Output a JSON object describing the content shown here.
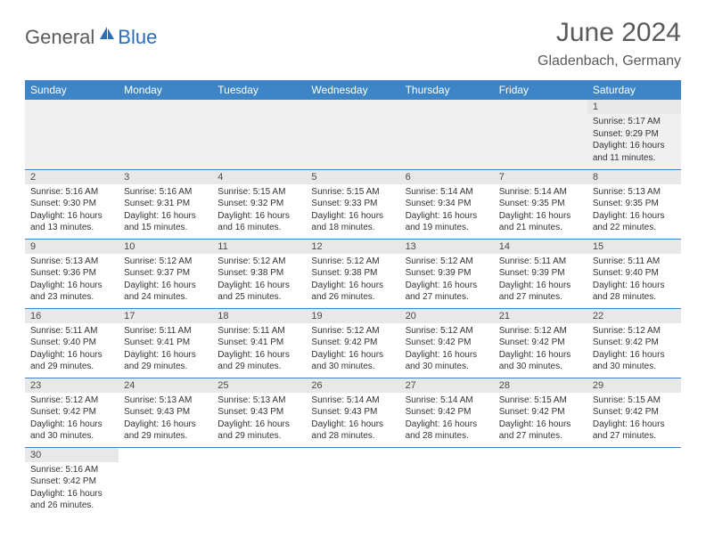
{
  "brand": {
    "part1": "General",
    "part2": "Blue"
  },
  "title": "June 2024",
  "location": "Gladenbach, Germany",
  "colors": {
    "header_bg": "#3d85c6",
    "header_text": "#ffffff",
    "daynum_bg": "#e8e8e8",
    "border": "#3d85c6",
    "brand_gray": "#5a5a5a",
    "brand_blue": "#2a6db8"
  },
  "weekdays": [
    "Sunday",
    "Monday",
    "Tuesday",
    "Wednesday",
    "Thursday",
    "Friday",
    "Saturday"
  ],
  "weeks": [
    [
      null,
      null,
      null,
      null,
      null,
      null,
      {
        "n": "1",
        "sr": "Sunrise: 5:17 AM",
        "ss": "Sunset: 9:29 PM",
        "d1": "Daylight: 16 hours",
        "d2": "and 11 minutes."
      }
    ],
    [
      {
        "n": "2",
        "sr": "Sunrise: 5:16 AM",
        "ss": "Sunset: 9:30 PM",
        "d1": "Daylight: 16 hours",
        "d2": "and 13 minutes."
      },
      {
        "n": "3",
        "sr": "Sunrise: 5:16 AM",
        "ss": "Sunset: 9:31 PM",
        "d1": "Daylight: 16 hours",
        "d2": "and 15 minutes."
      },
      {
        "n": "4",
        "sr": "Sunrise: 5:15 AM",
        "ss": "Sunset: 9:32 PM",
        "d1": "Daylight: 16 hours",
        "d2": "and 16 minutes."
      },
      {
        "n": "5",
        "sr": "Sunrise: 5:15 AM",
        "ss": "Sunset: 9:33 PM",
        "d1": "Daylight: 16 hours",
        "d2": "and 18 minutes."
      },
      {
        "n": "6",
        "sr": "Sunrise: 5:14 AM",
        "ss": "Sunset: 9:34 PM",
        "d1": "Daylight: 16 hours",
        "d2": "and 19 minutes."
      },
      {
        "n": "7",
        "sr": "Sunrise: 5:14 AM",
        "ss": "Sunset: 9:35 PM",
        "d1": "Daylight: 16 hours",
        "d2": "and 21 minutes."
      },
      {
        "n": "8",
        "sr": "Sunrise: 5:13 AM",
        "ss": "Sunset: 9:35 PM",
        "d1": "Daylight: 16 hours",
        "d2": "and 22 minutes."
      }
    ],
    [
      {
        "n": "9",
        "sr": "Sunrise: 5:13 AM",
        "ss": "Sunset: 9:36 PM",
        "d1": "Daylight: 16 hours",
        "d2": "and 23 minutes."
      },
      {
        "n": "10",
        "sr": "Sunrise: 5:12 AM",
        "ss": "Sunset: 9:37 PM",
        "d1": "Daylight: 16 hours",
        "d2": "and 24 minutes."
      },
      {
        "n": "11",
        "sr": "Sunrise: 5:12 AM",
        "ss": "Sunset: 9:38 PM",
        "d1": "Daylight: 16 hours",
        "d2": "and 25 minutes."
      },
      {
        "n": "12",
        "sr": "Sunrise: 5:12 AM",
        "ss": "Sunset: 9:38 PM",
        "d1": "Daylight: 16 hours",
        "d2": "and 26 minutes."
      },
      {
        "n": "13",
        "sr": "Sunrise: 5:12 AM",
        "ss": "Sunset: 9:39 PM",
        "d1": "Daylight: 16 hours",
        "d2": "and 27 minutes."
      },
      {
        "n": "14",
        "sr": "Sunrise: 5:11 AM",
        "ss": "Sunset: 9:39 PM",
        "d1": "Daylight: 16 hours",
        "d2": "and 27 minutes."
      },
      {
        "n": "15",
        "sr": "Sunrise: 5:11 AM",
        "ss": "Sunset: 9:40 PM",
        "d1": "Daylight: 16 hours",
        "d2": "and 28 minutes."
      }
    ],
    [
      {
        "n": "16",
        "sr": "Sunrise: 5:11 AM",
        "ss": "Sunset: 9:40 PM",
        "d1": "Daylight: 16 hours",
        "d2": "and 29 minutes."
      },
      {
        "n": "17",
        "sr": "Sunrise: 5:11 AM",
        "ss": "Sunset: 9:41 PM",
        "d1": "Daylight: 16 hours",
        "d2": "and 29 minutes."
      },
      {
        "n": "18",
        "sr": "Sunrise: 5:11 AM",
        "ss": "Sunset: 9:41 PM",
        "d1": "Daylight: 16 hours",
        "d2": "and 29 minutes."
      },
      {
        "n": "19",
        "sr": "Sunrise: 5:12 AM",
        "ss": "Sunset: 9:42 PM",
        "d1": "Daylight: 16 hours",
        "d2": "and 30 minutes."
      },
      {
        "n": "20",
        "sr": "Sunrise: 5:12 AM",
        "ss": "Sunset: 9:42 PM",
        "d1": "Daylight: 16 hours",
        "d2": "and 30 minutes."
      },
      {
        "n": "21",
        "sr": "Sunrise: 5:12 AM",
        "ss": "Sunset: 9:42 PM",
        "d1": "Daylight: 16 hours",
        "d2": "and 30 minutes."
      },
      {
        "n": "22",
        "sr": "Sunrise: 5:12 AM",
        "ss": "Sunset: 9:42 PM",
        "d1": "Daylight: 16 hours",
        "d2": "and 30 minutes."
      }
    ],
    [
      {
        "n": "23",
        "sr": "Sunrise: 5:12 AM",
        "ss": "Sunset: 9:42 PM",
        "d1": "Daylight: 16 hours",
        "d2": "and 30 minutes."
      },
      {
        "n": "24",
        "sr": "Sunrise: 5:13 AM",
        "ss": "Sunset: 9:43 PM",
        "d1": "Daylight: 16 hours",
        "d2": "and 29 minutes."
      },
      {
        "n": "25",
        "sr": "Sunrise: 5:13 AM",
        "ss": "Sunset: 9:43 PM",
        "d1": "Daylight: 16 hours",
        "d2": "and 29 minutes."
      },
      {
        "n": "26",
        "sr": "Sunrise: 5:14 AM",
        "ss": "Sunset: 9:43 PM",
        "d1": "Daylight: 16 hours",
        "d2": "and 28 minutes."
      },
      {
        "n": "27",
        "sr": "Sunrise: 5:14 AM",
        "ss": "Sunset: 9:42 PM",
        "d1": "Daylight: 16 hours",
        "d2": "and 28 minutes."
      },
      {
        "n": "28",
        "sr": "Sunrise: 5:15 AM",
        "ss": "Sunset: 9:42 PM",
        "d1": "Daylight: 16 hours",
        "d2": "and 27 minutes."
      },
      {
        "n": "29",
        "sr": "Sunrise: 5:15 AM",
        "ss": "Sunset: 9:42 PM",
        "d1": "Daylight: 16 hours",
        "d2": "and 27 minutes."
      }
    ],
    [
      {
        "n": "30",
        "sr": "Sunrise: 5:16 AM",
        "ss": "Sunset: 9:42 PM",
        "d1": "Daylight: 16 hours",
        "d2": "and 26 minutes."
      },
      null,
      null,
      null,
      null,
      null,
      null
    ]
  ]
}
